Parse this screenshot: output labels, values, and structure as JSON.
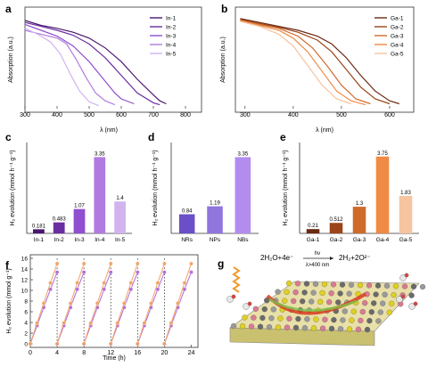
{
  "colors": {
    "in": [
      "#4a1670",
      "#6a2ea0",
      "#8f4fd0",
      "#b17ae0",
      "#d2b2ef"
    ],
    "ga": [
      "#6b2a12",
      "#9a4418",
      "#cf6a2b",
      "#f08a45",
      "#f6c4a0"
    ],
    "nbs": [
      "#6a4fc8",
      "#8f75dc",
      "#b38cf0"
    ],
    "time_in": "#b06ad6",
    "time_ga": "#f0a062"
  },
  "panels": {
    "a": {
      "letter": "a",
      "xlabel": "λ (nm)",
      "ylabel": "Absorption (a.u.)",
      "xticks": [
        "300",
        "400",
        "500",
        "600",
        "700",
        "800"
      ],
      "legend": [
        "In-1",
        "In-2",
        "In-3",
        "In-4",
        "In-5"
      ]
    },
    "b": {
      "letter": "b",
      "xlabel": "λ (nm)",
      "ylabel": "Absorption (a.u.)",
      "xticks": [
        "300",
        "400",
        "500",
        "600"
      ],
      "legend": [
        "Ga-1",
        "Ga-2",
        "Ga-3",
        "Ga-4",
        "Ga-5"
      ]
    },
    "c": {
      "letter": "c",
      "ylabel": "H₂ evolution (mmol h⁻¹ g⁻¹)"
    },
    "d": {
      "letter": "d",
      "ylabel": "H₂ evolution (mmol h⁻¹ g⁻¹)"
    },
    "e": {
      "letter": "e",
      "ylabel": "H₂ evolution (mmol h⁻¹ g⁻¹)"
    },
    "f": {
      "letter": "f",
      "xlabel": "Time (h)",
      "ylabel": "H₂ evolution (mmol g⁻¹)",
      "xticks": [
        "0",
        "4",
        "8",
        "12",
        "16",
        "20",
        "24"
      ],
      "yticks": [
        "0",
        "2",
        "4",
        "6",
        "8",
        "10",
        "12",
        "14",
        "16"
      ]
    },
    "g": {
      "letter": "g",
      "equation_left": "2H₂O+4e⁻",
      "equation_right": "2H₂+2O²⁻",
      "arrow_top": "hν",
      "arrow_bottom": "λ>400 nm"
    }
  },
  "chart_data": [
    {
      "type": "line",
      "panel": "a",
      "xlabel": "λ (nm)",
      "ylabel": "Absorption (a.u.)",
      "xlim": [
        300,
        850
      ],
      "series": [
        {
          "name": "In-1",
          "x": [
            300,
            350,
            400,
            450,
            500,
            550,
            600,
            650,
            700,
            720,
            740
          ],
          "y": [
            0.9,
            0.85,
            0.82,
            0.78,
            0.72,
            0.62,
            0.48,
            0.3,
            0.14,
            0.08,
            0.05
          ]
        },
        {
          "name": "In-2",
          "x": [
            300,
            350,
            400,
            450,
            500,
            550,
            600,
            650,
            700,
            720
          ],
          "y": [
            0.88,
            0.84,
            0.8,
            0.75,
            0.66,
            0.52,
            0.34,
            0.16,
            0.06,
            0.04
          ]
        },
        {
          "name": "In-3",
          "x": [
            300,
            350,
            400,
            450,
            500,
            550,
            580,
            600,
            640
          ],
          "y": [
            0.86,
            0.8,
            0.74,
            0.64,
            0.48,
            0.28,
            0.16,
            0.1,
            0.05
          ]
        },
        {
          "name": "In-4",
          "x": [
            300,
            350,
            400,
            430,
            460,
            490,
            520,
            550,
            580
          ],
          "y": [
            0.8,
            0.76,
            0.72,
            0.66,
            0.5,
            0.32,
            0.16,
            0.08,
            0.04
          ]
        },
        {
          "name": "In-5",
          "x": [
            300,
            340,
            380,
            410,
            440,
            470,
            500,
            530
          ],
          "y": [
            0.82,
            0.76,
            0.68,
            0.56,
            0.36,
            0.18,
            0.07,
            0.03
          ]
        }
      ]
    },
    {
      "type": "line",
      "panel": "b",
      "xlabel": "λ (nm)",
      "ylabel": "Absorption (a.u.)",
      "xlim": [
        280,
        650
      ],
      "series": [
        {
          "name": "Ga-1",
          "x": [
            290,
            330,
            370,
            410,
            450,
            480,
            510,
            540,
            570,
            600,
            620
          ],
          "y": [
            0.92,
            0.88,
            0.84,
            0.8,
            0.74,
            0.66,
            0.52,
            0.34,
            0.18,
            0.08,
            0.05
          ]
        },
        {
          "name": "Ga-2",
          "x": [
            290,
            330,
            370,
            410,
            450,
            480,
            510,
            540,
            570,
            600
          ],
          "y": [
            0.91,
            0.87,
            0.83,
            0.78,
            0.7,
            0.58,
            0.4,
            0.22,
            0.1,
            0.05
          ]
        },
        {
          "name": "Ga-3",
          "x": [
            290,
            330,
            370,
            410,
            440,
            470,
            500,
            530,
            560
          ],
          "y": [
            0.9,
            0.86,
            0.82,
            0.74,
            0.62,
            0.44,
            0.24,
            0.1,
            0.05
          ]
        },
        {
          "name": "Ga-4",
          "x": [
            290,
            330,
            370,
            400,
            430,
            460,
            490,
            520,
            550
          ],
          "y": [
            0.9,
            0.85,
            0.8,
            0.72,
            0.58,
            0.38,
            0.18,
            0.08,
            0.04
          ]
        },
        {
          "name": "Ga-5",
          "x": [
            290,
            330,
            370,
            400,
            430,
            460,
            490,
            520
          ],
          "y": [
            0.89,
            0.84,
            0.76,
            0.64,
            0.44,
            0.24,
            0.1,
            0.05
          ]
        }
      ]
    },
    {
      "type": "bar",
      "panel": "c",
      "ylabel": "H₂ evolution (mmol h⁻¹ g⁻¹)",
      "categories": [
        "In-1",
        "In-2",
        "In-3",
        "In-4",
        "In-5"
      ],
      "values": [
        0.181,
        0.483,
        1.07,
        3.35,
        1.4
      ],
      "labels": [
        "0.181",
        "0.483",
        "1.07",
        "3.35",
        "1.4"
      ],
      "ylim": [
        0,
        3.6
      ]
    },
    {
      "type": "bar",
      "panel": "d",
      "ylabel": "H₂ evolution (mmol h⁻¹ g⁻¹)",
      "categories": [
        "NRs",
        "NPs",
        "NBs"
      ],
      "values": [
        0.84,
        1.19,
        3.35
      ],
      "labels": [
        "0.84",
        "1.19",
        "3.35"
      ],
      "ylim": [
        0,
        3.6
      ]
    },
    {
      "type": "bar",
      "panel": "e",
      "ylabel": "H₂ evolution (mmol h⁻¹ g⁻¹)",
      "categories": [
        "Ga-1",
        "Ga-2",
        "Ga-3",
        "Ga-4",
        "Ga-5"
      ],
      "values": [
        0.21,
        0.512,
        1.3,
        3.75,
        1.83
      ],
      "labels": [
        "0.21",
        "0.512",
        "1.3",
        "3.75",
        "1.83"
      ],
      "ylim": [
        0,
        4.0
      ]
    },
    {
      "type": "scatter",
      "panel": "f",
      "xlabel": "Time (h)",
      "ylabel": "H₂ evolution (mmol g⁻¹)",
      "xlim": [
        0,
        25
      ],
      "ylim": [
        0,
        16
      ],
      "cycle_boundaries": [
        4,
        8,
        12,
        16,
        20
      ],
      "series": [
        {
          "name": "",
          "x": [
            0,
            1,
            2,
            3,
            4,
            4,
            5,
            6,
            7,
            8,
            8,
            9,
            10,
            11,
            12,
            12,
            13,
            14,
            15,
            16,
            16,
            17,
            18,
            19,
            20,
            20,
            21,
            22,
            23,
            24
          ],
          "y": [
            0,
            3.4,
            6.8,
            10.2,
            13.4,
            0,
            3.4,
            6.8,
            10.2,
            13.4,
            0,
            3.4,
            6.8,
            10.2,
            13.4,
            0,
            3.4,
            6.8,
            10.2,
            13.4,
            0,
            3.4,
            6.8,
            10.2,
            13.4,
            0,
            3.4,
            6.8,
            10.2,
            13.4
          ]
        },
        {
          "name": "",
          "x": [
            0,
            1,
            2,
            3,
            4,
            4,
            5,
            6,
            7,
            8,
            8,
            9,
            10,
            11,
            12,
            12,
            13,
            14,
            15,
            16,
            16,
            17,
            18,
            19,
            20,
            20,
            21,
            22,
            23,
            24
          ],
          "y": [
            0,
            3.9,
            7.6,
            11.4,
            15.0,
            0,
            3.9,
            7.6,
            11.4,
            15.0,
            0,
            3.9,
            7.6,
            11.4,
            15.0,
            0,
            3.9,
            7.6,
            11.4,
            15.0,
            0,
            3.9,
            7.6,
            11.4,
            15.0,
            0,
            3.9,
            7.6,
            11.4,
            15.0
          ]
        }
      ]
    }
  ]
}
